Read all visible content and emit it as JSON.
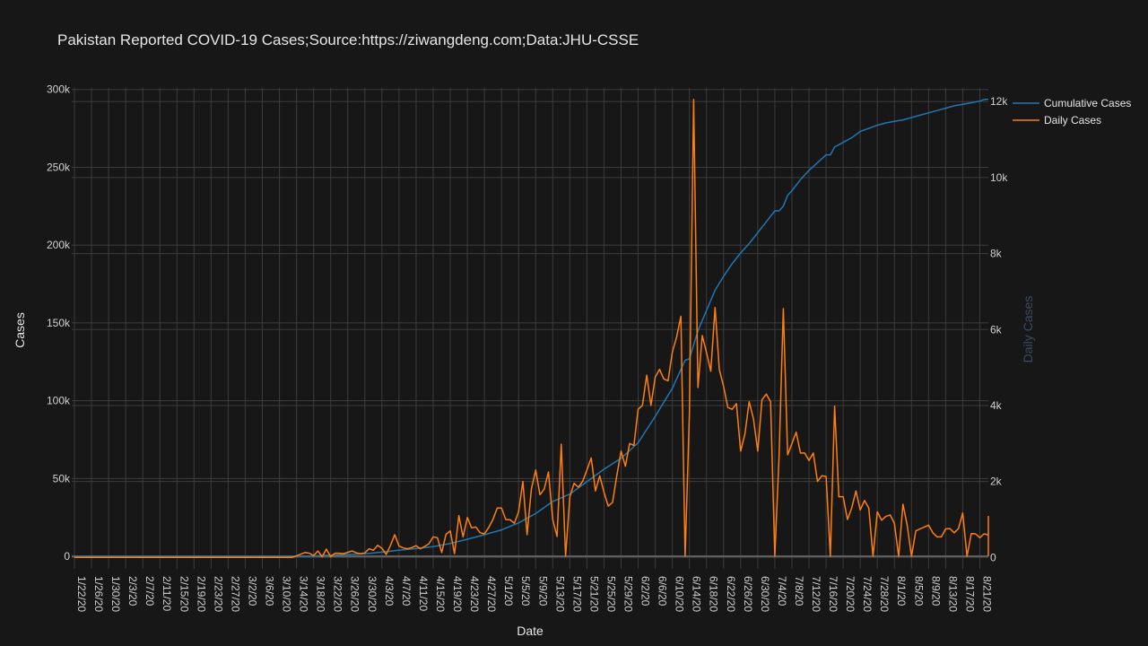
{
  "chart_data": {
    "type": "line",
    "title": "Pakistan Reported COVID-19 Cases;Source:https://ziwangdeng.com;Data:JHU-CSSE",
    "xlabel": "Date",
    "ylabel": "Cases",
    "y2label": "Daily Cases",
    "legend_position": "top-right",
    "grid": true,
    "x_start": "1/22/20",
    "x_end": "8/23/20",
    "x_ticks": [
      "1/22/20",
      "1/26/20",
      "1/30/20",
      "2/3/20",
      "2/7/20",
      "2/11/20",
      "2/15/20",
      "2/19/20",
      "2/23/20",
      "2/27/20",
      "3/2/20",
      "3/6/20",
      "3/10/20",
      "3/14/20",
      "3/18/20",
      "3/22/20",
      "3/26/20",
      "3/30/20",
      "4/3/20",
      "4/7/20",
      "4/11/20",
      "4/15/20",
      "4/19/20",
      "4/23/20",
      "4/27/20",
      "5/1/20",
      "5/5/20",
      "5/9/20",
      "5/13/20",
      "5/17/20",
      "5/21/20",
      "5/25/20",
      "5/29/20",
      "6/2/20",
      "6/6/20",
      "6/10/20",
      "6/14/20",
      "6/18/20",
      "6/22/20",
      "6/26/20",
      "6/30/20",
      "7/4/20",
      "7/8/20",
      "7/12/20",
      "7/16/20",
      "7/20/20",
      "7/24/20",
      "7/28/20",
      "8/1/20",
      "8/5/20",
      "8/9/20",
      "8/13/20",
      "8/17/20",
      "8/21/20"
    ],
    "y_ticks": [
      {
        "v": 0,
        "label": "0"
      },
      {
        "v": 50000,
        "label": "50k"
      },
      {
        "v": 100000,
        "label": "100k"
      },
      {
        "v": 150000,
        "label": "150k"
      },
      {
        "v": 200000,
        "label": "200k"
      },
      {
        "v": 250000,
        "label": "250k"
      },
      {
        "v": 300000,
        "label": "300k"
      }
    ],
    "y2_ticks": [
      {
        "v": 0,
        "label": "0"
      },
      {
        "v": 2000,
        "label": "2k"
      },
      {
        "v": 4000,
        "label": "4k"
      },
      {
        "v": 6000,
        "label": "6k"
      },
      {
        "v": 8000,
        "label": "8k"
      },
      {
        "v": 10000,
        "label": "10k"
      },
      {
        "v": 12000,
        "label": "12k"
      }
    ],
    "ylim": [
      -8000,
      301000
    ],
    "y2lim": [
      -300,
      12360
    ],
    "series": [
      {
        "name": "Cumulative Cases",
        "axis": "left",
        "color": "#1f77b4",
        "points": [
          [
            "1/22/20",
            0
          ],
          [
            "2/25/20",
            2
          ],
          [
            "3/14/20",
            28
          ],
          [
            "3/18/20",
            300
          ],
          [
            "3/22/20",
            800
          ],
          [
            "3/26/20",
            1200
          ],
          [
            "3/30/20",
            1700
          ],
          [
            "4/3/20",
            2700
          ],
          [
            "4/7/20",
            4000
          ],
          [
            "4/11/20",
            5000
          ],
          [
            "4/15/20",
            6300
          ],
          [
            "4/19/20",
            8300
          ],
          [
            "4/23/20",
            11000
          ],
          [
            "4/27/20",
            13900
          ],
          [
            "5/1/20",
            17000
          ],
          [
            "5/5/20",
            21500
          ],
          [
            "5/9/20",
            27500
          ],
          [
            "5/13/20",
            35300
          ],
          [
            "5/17/20",
            40000
          ],
          [
            "5/21/20",
            48000
          ],
          [
            "5/25/20",
            56000
          ],
          [
            "5/29/20",
            63000
          ],
          [
            "6/2/20",
            73000
          ],
          [
            "6/6/20",
            90000
          ],
          [
            "6/10/20",
            108000
          ],
          [
            "6/13/20",
            126000
          ],
          [
            "6/14/20",
            127000
          ],
          [
            "6/16/20",
            145000
          ],
          [
            "6/18/20",
            158000
          ],
          [
            "6/20/20",
            171000
          ],
          [
            "6/22/20",
            180000
          ],
          [
            "6/24/20",
            188000
          ],
          [
            "6/26/20",
            195000
          ],
          [
            "6/28/20",
            201000
          ],
          [
            "6/30/20",
            208000
          ],
          [
            "7/2/20",
            215000
          ],
          [
            "7/4/20",
            222000
          ],
          [
            "7/5/20",
            222000
          ],
          [
            "7/6/20",
            225000
          ],
          [
            "7/7/20",
            232000
          ],
          [
            "7/8/20",
            235000
          ],
          [
            "7/10/20",
            242000
          ],
          [
            "7/12/20",
            248000
          ],
          [
            "7/14/20",
            253000
          ],
          [
            "7/16/20",
            258000
          ],
          [
            "7/17/20",
            258000
          ],
          [
            "7/18/20",
            263000
          ],
          [
            "7/20/20",
            266000
          ],
          [
            "7/22/20",
            269000
          ],
          [
            "7/24/20",
            273000
          ],
          [
            "7/26/20",
            275000
          ],
          [
            "7/28/20",
            277000
          ],
          [
            "7/30/20",
            278500
          ],
          [
            "8/1/20",
            279500
          ],
          [
            "8/3/20",
            280500
          ],
          [
            "8/5/20",
            282000
          ],
          [
            "8/7/20",
            283500
          ],
          [
            "8/9/20",
            285000
          ],
          [
            "8/11/20",
            286500
          ],
          [
            "8/13/20",
            288000
          ],
          [
            "8/15/20",
            289500
          ],
          [
            "8/17/20",
            290500
          ],
          [
            "8/19/20",
            291500
          ],
          [
            "8/21/20",
            292500
          ],
          [
            "8/22/20",
            293500
          ],
          [
            "8/23/20",
            293800
          ]
        ]
      },
      {
        "name": "Daily Cases",
        "axis": "right",
        "color": "#ff7f0e",
        "points": [
          [
            "1/22/20",
            0
          ],
          [
            "3/13/20",
            0
          ],
          [
            "3/16/20",
            130
          ],
          [
            "3/17/20",
            110
          ],
          [
            "3/18/20",
            50
          ],
          [
            "3/19/20",
            170
          ],
          [
            "3/20/20",
            20
          ],
          [
            "3/21/20",
            220
          ],
          [
            "3/22/20",
            20
          ],
          [
            "3/23/20",
            110
          ],
          [
            "3/24/20",
            110
          ],
          [
            "3/25/20",
            100
          ],
          [
            "3/27/20",
            170
          ],
          [
            "3/28/20",
            120
          ],
          [
            "3/29/20",
            100
          ],
          [
            "3/30/20",
            120
          ],
          [
            "3/31/20",
            230
          ],
          [
            "4/1/20",
            190
          ],
          [
            "4/2/20",
            320
          ],
          [
            "4/3/20",
            240
          ],
          [
            "4/4/20",
            80
          ],
          [
            "4/5/20",
            320
          ],
          [
            "4/6/20",
            600
          ],
          [
            "4/7/20",
            300
          ],
          [
            "4/8/20",
            250
          ],
          [
            "4/9/20",
            230
          ],
          [
            "4/10/20",
            260
          ],
          [
            "4/11/20",
            310
          ],
          [
            "4/12/20",
            230
          ],
          [
            "4/13/20",
            290
          ],
          [
            "4/14/20",
            360
          ],
          [
            "4/15/20",
            540
          ],
          [
            "4/16/20",
            520
          ],
          [
            "4/17/20",
            130
          ],
          [
            "4/18/20",
            610
          ],
          [
            "4/19/20",
            700
          ],
          [
            "4/20/20",
            100
          ],
          [
            "4/21/20",
            1100
          ],
          [
            "4/22/20",
            540
          ],
          [
            "4/23/20",
            1050
          ],
          [
            "4/24/20",
            780
          ],
          [
            "4/25/20",
            800
          ],
          [
            "4/26/20",
            650
          ],
          [
            "4/27/20",
            620
          ],
          [
            "4/28/20",
            790
          ],
          [
            "4/29/20",
            1000
          ],
          [
            "4/30/20",
            1300
          ],
          [
            "5/1/20",
            1300
          ],
          [
            "5/2/20",
            1000
          ],
          [
            "5/3/20",
            990
          ],
          [
            "5/4/20",
            900
          ],
          [
            "5/5/20",
            1200
          ],
          [
            "5/6/20",
            2000
          ],
          [
            "5/7/20",
            600
          ],
          [
            "5/8/20",
            1800
          ],
          [
            "5/9/20",
            2300
          ],
          [
            "5/10/20",
            1650
          ],
          [
            "5/11/20",
            1800
          ],
          [
            "5/12/20",
            2250
          ],
          [
            "5/13/20",
            1000
          ],
          [
            "5/14/20",
            550
          ],
          [
            "5/15/20",
            2980
          ],
          [
            "5/16/20",
            30
          ],
          [
            "5/17/20",
            1600
          ],
          [
            "5/18/20",
            1950
          ],
          [
            "5/19/20",
            1850
          ],
          [
            "5/20/20",
            2000
          ],
          [
            "5/21/20",
            2300
          ],
          [
            "5/22/20",
            2620
          ],
          [
            "5/23/20",
            1750
          ],
          [
            "5/24/20",
            2150
          ],
          [
            "5/25/20",
            1720
          ],
          [
            "5/26/20",
            1350
          ],
          [
            "5/27/20",
            1450
          ],
          [
            "5/28/20",
            2150
          ],
          [
            "5/29/20",
            2800
          ],
          [
            "5/30/20",
            2400
          ],
          [
            "5/31/20",
            3000
          ],
          [
            "6/1/20",
            2950
          ],
          [
            "6/2/20",
            3900
          ],
          [
            "6/3/20",
            4000
          ],
          [
            "6/4/20",
            4800
          ],
          [
            "6/5/20",
            4000
          ],
          [
            "6/6/20",
            4750
          ],
          [
            "6/7/20",
            4950
          ],
          [
            "6/8/20",
            4700
          ],
          [
            "6/9/20",
            4650
          ],
          [
            "6/10/20",
            5400
          ],
          [
            "6/11/20",
            5800
          ],
          [
            "6/12/20",
            6350
          ],
          [
            "6/13/20",
            30
          ],
          [
            "6/14/20",
            3800
          ],
          [
            "6/15/20",
            12060
          ],
          [
            "6/16/20",
            4470
          ],
          [
            "6/17/20",
            5840
          ],
          [
            "6/18/20",
            5400
          ],
          [
            "6/19/20",
            4900
          ],
          [
            "6/20/20",
            6580
          ],
          [
            "6/21/20",
            4950
          ],
          [
            "6/22/20",
            4500
          ],
          [
            "6/23/20",
            3950
          ],
          [
            "6/24/20",
            3900
          ],
          [
            "6/25/20",
            4050
          ],
          [
            "6/26/20",
            2800
          ],
          [
            "6/27/20",
            3250
          ],
          [
            "6/28/20",
            4100
          ],
          [
            "6/29/20",
            3650
          ],
          [
            "6/30/20",
            2800
          ],
          [
            "7/1/20",
            4150
          ],
          [
            "7/2/20",
            4300
          ],
          [
            "7/3/20",
            4100
          ],
          [
            "7/4/20",
            30
          ],
          [
            "7/5/20",
            2700
          ],
          [
            "7/6/20",
            6550
          ],
          [
            "7/7/20",
            2700
          ],
          [
            "7/8/20",
            3000
          ],
          [
            "7/9/20",
            3300
          ],
          [
            "7/10/20",
            2750
          ],
          [
            "7/11/20",
            2750
          ],
          [
            "7/12/20",
            2550
          ],
          [
            "7/13/20",
            2750
          ],
          [
            "7/14/20",
            2000
          ],
          [
            "7/15/20",
            2150
          ],
          [
            "7/16/20",
            2130
          ],
          [
            "7/17/20",
            30
          ],
          [
            "7/18/20",
            3980
          ],
          [
            "7/19/20",
            1600
          ],
          [
            "7/20/20",
            1600
          ],
          [
            "7/21/20",
            1000
          ],
          [
            "7/22/20",
            1300
          ],
          [
            "7/23/20",
            1750
          ],
          [
            "7/24/20",
            1250
          ],
          [
            "7/25/20",
            1500
          ],
          [
            "7/26/20",
            1300
          ],
          [
            "7/27/20",
            30
          ],
          [
            "7/28/20",
            1200
          ],
          [
            "7/29/20",
            980
          ],
          [
            "7/30/20",
            1080
          ],
          [
            "7/31/20",
            1120
          ],
          [
            "8/1/20",
            900
          ],
          [
            "8/2/20",
            30
          ],
          [
            "8/3/20",
            1400
          ],
          [
            "8/4/20",
            850
          ],
          [
            "8/5/20",
            30
          ],
          [
            "8/6/20",
            700
          ],
          [
            "8/7/20",
            750
          ],
          [
            "8/8/20",
            800
          ],
          [
            "8/9/20",
            850
          ],
          [
            "8/10/20",
            650
          ],
          [
            "8/11/20",
            540
          ],
          [
            "8/12/20",
            540
          ],
          [
            "8/13/20",
            750
          ],
          [
            "8/14/20",
            760
          ],
          [
            "8/15/20",
            650
          ],
          [
            "8/16/20",
            760
          ],
          [
            "8/17/20",
            1170
          ],
          [
            "8/18/20",
            30
          ],
          [
            "8/19/20",
            630
          ],
          [
            "8/20/20",
            620
          ],
          [
            "8/21/20",
            520
          ],
          [
            "8/22/20",
            620
          ],
          [
            "8/23/20",
            590
          ],
          [
            "8/24/20",
            1080
          ],
          [
            "8/25/20",
            30
          ]
        ]
      }
    ]
  }
}
